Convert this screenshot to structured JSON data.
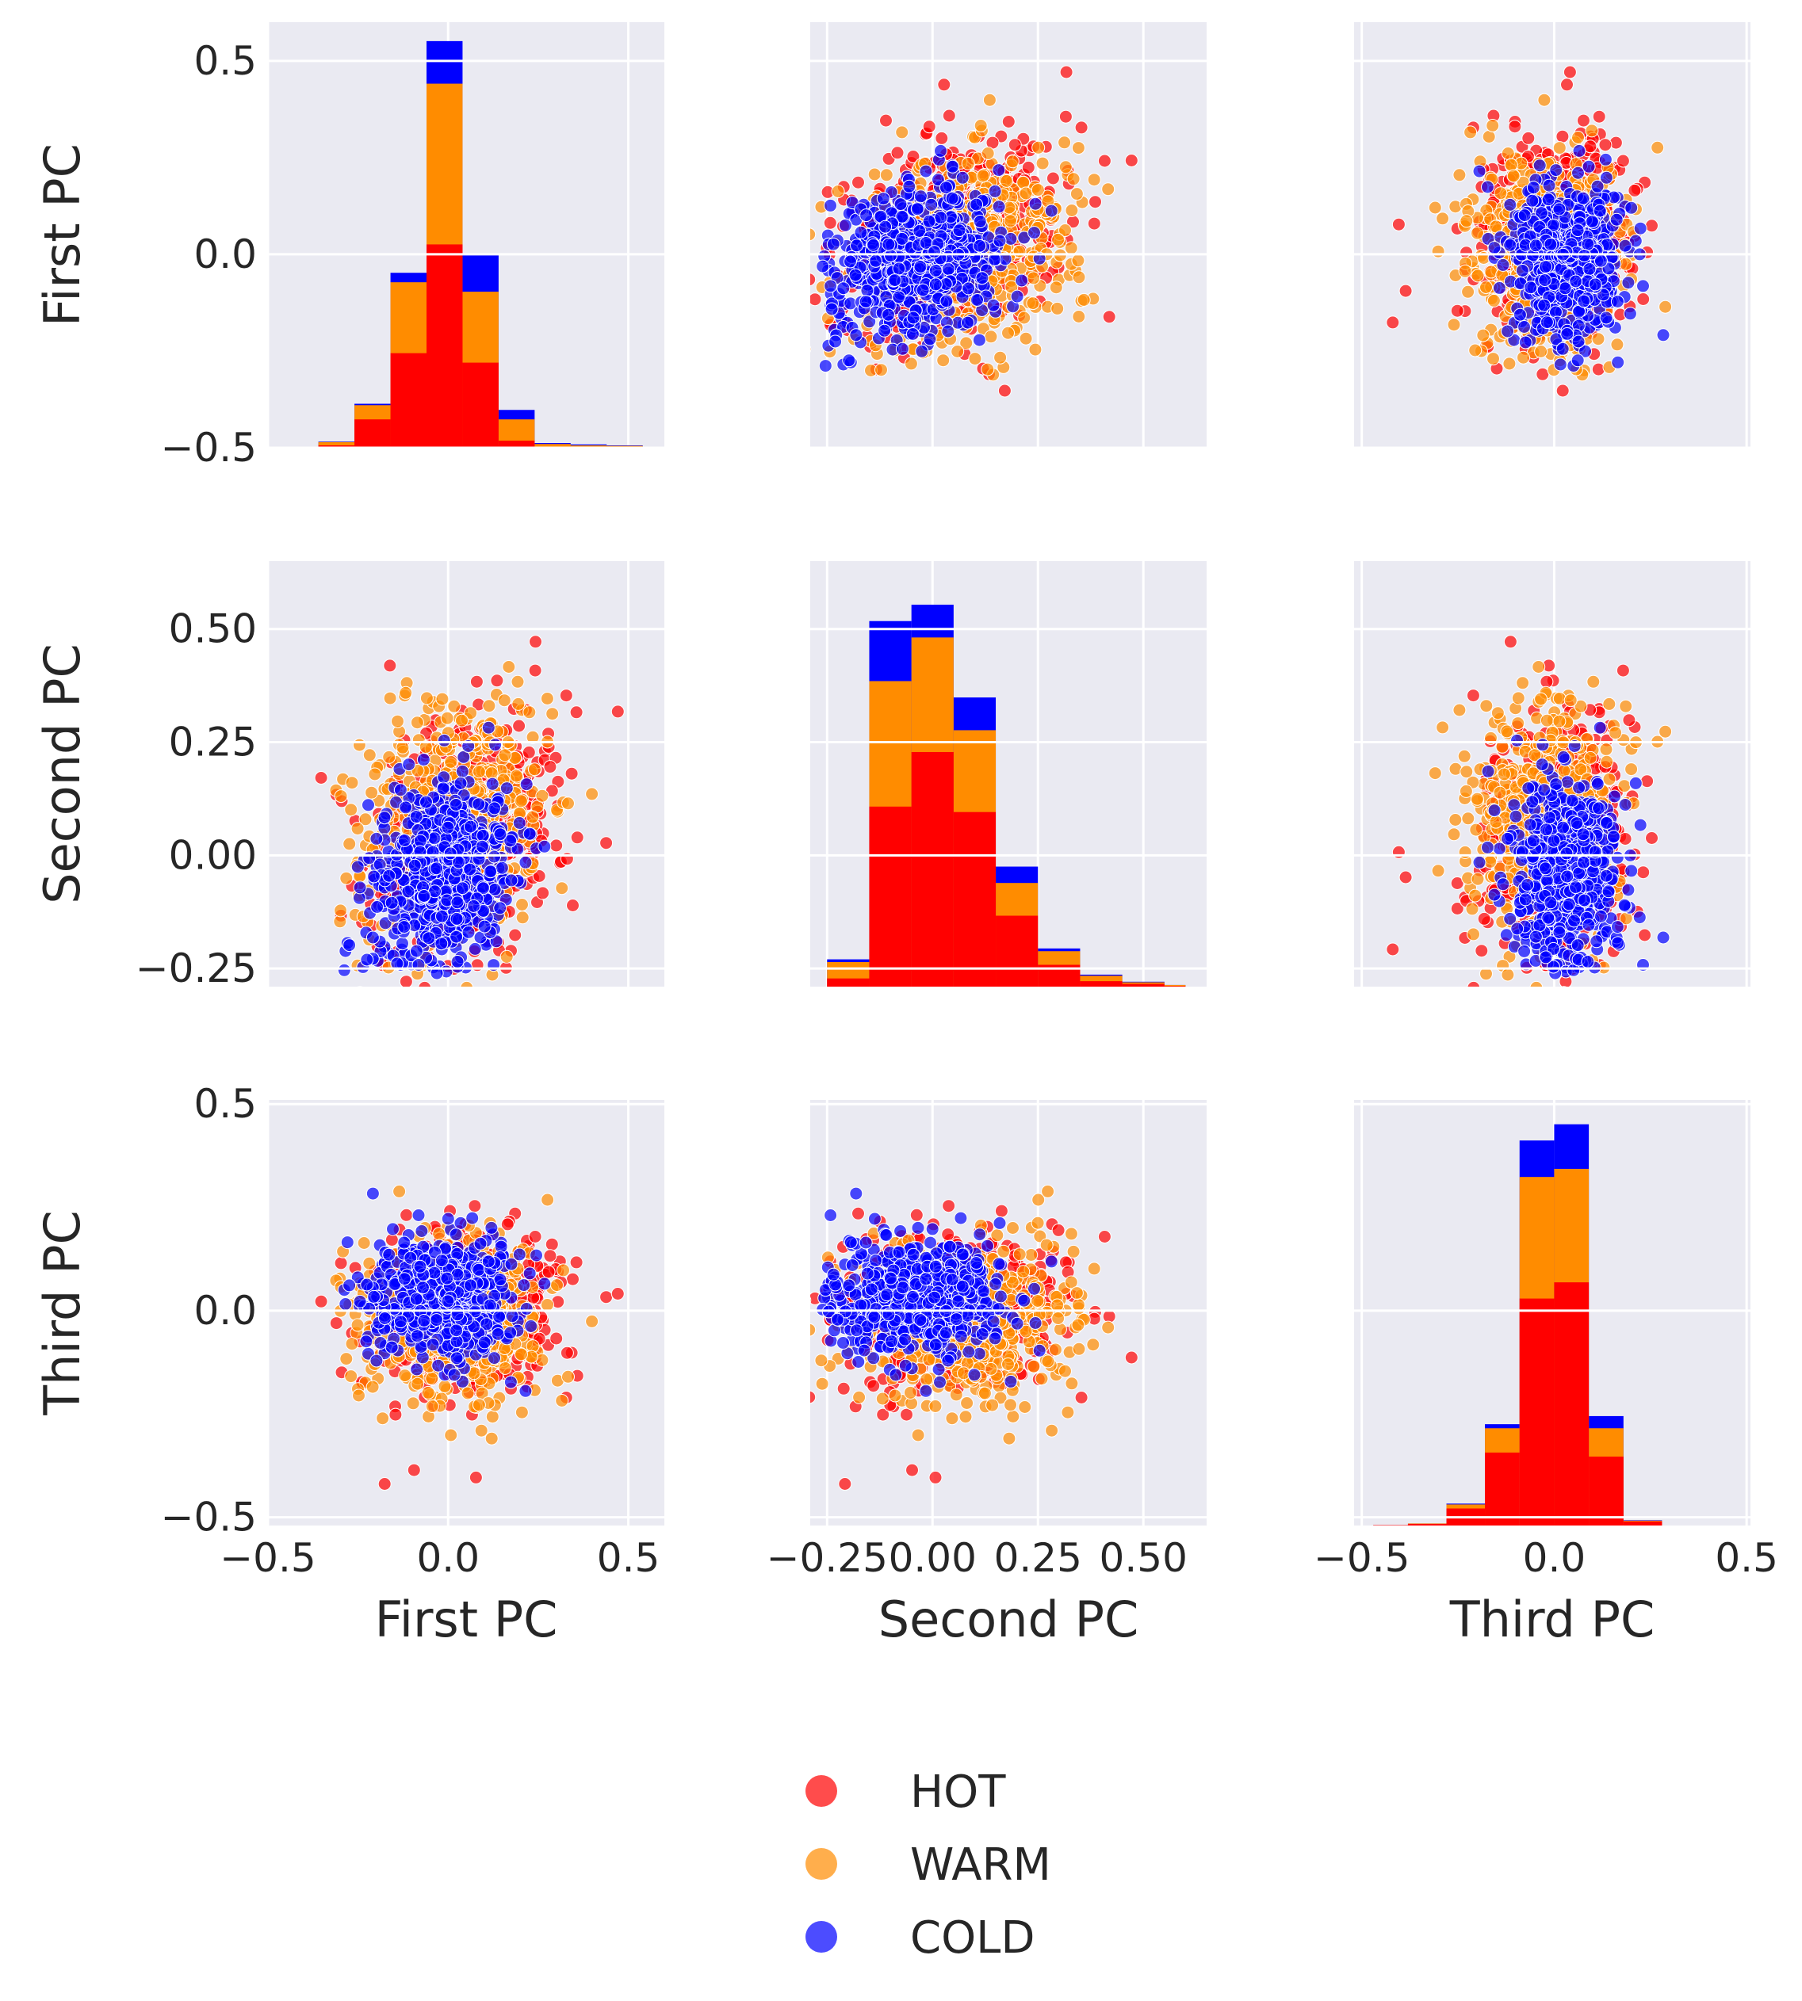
{
  "chart_data": {
    "type": "pairplot",
    "variables": [
      "First PC",
      "Second PC",
      "Third PC"
    ],
    "background": "#eaeaf2",
    "grid": true,
    "legend": {
      "placement": "bottom-center",
      "entries": [
        {
          "label": "HOT",
          "color": "#ff0000"
        },
        {
          "label": "WARM",
          "color": "#ff8c00"
        },
        {
          "label": "COLD",
          "color": "#0000ff"
        }
      ]
    },
    "axes": {
      "First PC": {
        "range": [
          -0.5,
          0.6
        ],
        "ticks": [
          -0.5,
          0.0,
          0.5
        ],
        "tick_labels": [
          "−0.5",
          "0.0",
          "0.5"
        ]
      },
      "Second PC": {
        "range": [
          -0.29,
          0.65
        ],
        "ticks": [
          -0.25,
          0.0,
          0.25,
          0.5
        ],
        "tick_labels": [
          "−0.25",
          "0.00",
          "0.25",
          "0.50"
        ]
      },
      "Third PC": {
        "range": [
          -0.52,
          0.51
        ],
        "ticks": [
          -0.5,
          0.0,
          0.5
        ],
        "tick_labels": [
          "−0.5",
          "0.0",
          "0.5"
        ]
      }
    },
    "histograms": {
      "First PC": {
        "bin_edges": [
          -0.46,
          -0.36,
          -0.26,
          -0.16,
          -0.06,
          0.04,
          0.14,
          0.24,
          0.34,
          0.44,
          0.54
        ],
        "stacked_tops": {
          "HOT": [
            0.0,
            0.005,
            0.06,
            0.2,
            0.43,
            0.18,
            0.015,
            0.0,
            0.0,
            0.0
          ],
          "WARM": [
            0.002,
            0.012,
            0.09,
            0.35,
            0.77,
            0.33,
            0.06,
            0.008,
            0.005,
            0.004
          ],
          "COLD": [
            0.002,
            0.013,
            0.093,
            0.37,
            0.86,
            0.41,
            0.08,
            0.01,
            0.007,
            0.005
          ]
        },
        "range": [
          0,
          0.9
        ]
      },
      "Second PC": {
        "bin_edges": [
          -0.25,
          -0.15,
          -0.05,
          0.05,
          0.15,
          0.25,
          0.35,
          0.45,
          0.55,
          0.6
        ],
        "stacked_tops": {
          "HOT": [
            0.015,
            0.33,
            0.43,
            0.32,
            0.13,
            0.04,
            0.01,
            0.005,
            0.001
          ],
          "WARM": [
            0.045,
            0.56,
            0.64,
            0.47,
            0.19,
            0.065,
            0.02,
            0.008,
            0.003
          ],
          "COLD": [
            0.05,
            0.67,
            0.7,
            0.53,
            0.22,
            0.07,
            0.022,
            0.009,
            0.003
          ]
        },
        "range": [
          0,
          0.78
        ]
      },
      "Third PC": {
        "bin_edges": [
          -0.47,
          -0.38,
          -0.28,
          -0.18,
          -0.09,
          0.0,
          0.09,
          0.18,
          0.28,
          0.37,
          0.47
        ],
        "stacked_tops": {
          "HOT": [
            0.001,
            0.004,
            0.042,
            0.18,
            0.56,
            0.6,
            0.17,
            0.01,
            0.0,
            0.0
          ],
          "WARM": [
            0.001,
            0.005,
            0.052,
            0.24,
            0.86,
            0.88,
            0.24,
            0.012,
            0.0,
            0.0
          ],
          "COLD": [
            0.001,
            0.005,
            0.054,
            0.25,
            0.95,
            0.99,
            0.27,
            0.013,
            0.0,
            0.0
          ]
        },
        "range": [
          0,
          1.05
        ]
      }
    },
    "scatter_clusters": {
      "HOT": {
        "First PC": {
          "mean": 0.05,
          "std": 0.14
        },
        "Second PC": {
          "mean": 0.05,
          "std": 0.14
        },
        "Third PC": {
          "mean": 0.0,
          "std": 0.1
        }
      },
      "WARM": {
        "First PC": {
          "mean": 0.02,
          "std": 0.13
        },
        "Second PC": {
          "mean": 0.08,
          "std": 0.14
        },
        "Third PC": {
          "mean": -0.02,
          "std": 0.09
        }
      },
      "COLD": {
        "First PC": {
          "mean": -0.02,
          "std": 0.1
        },
        "Second PC": {
          "mean": -0.03,
          "std": 0.1
        },
        "Third PC": {
          "mean": 0.03,
          "std": 0.07
        }
      }
    },
    "point_alpha": 0.7
  }
}
